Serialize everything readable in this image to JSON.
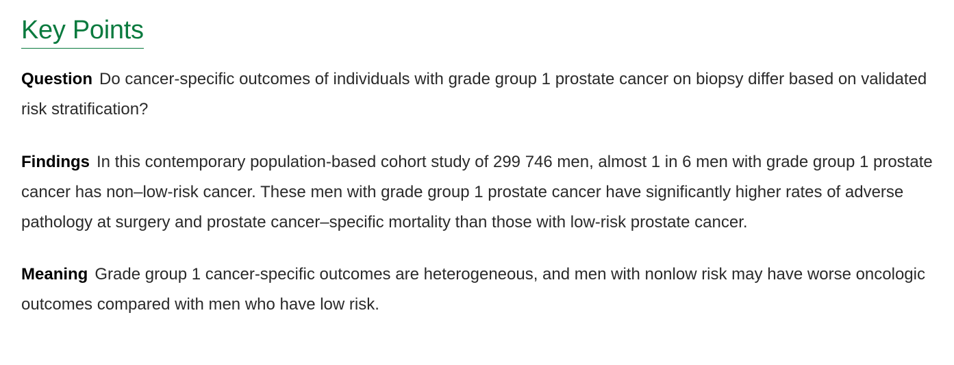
{
  "key_points": {
    "title": "Key Points",
    "question": {
      "label": "Question",
      "text": "Do cancer-specific outcomes of individuals with grade group 1 prostate cancer on biopsy differ based on validated risk stratification?"
    },
    "findings": {
      "label": "Findings",
      "text": "In this contemporary population-based cohort study of 299 746 men, almost 1 in 6 men with grade group 1 prostate cancer has non–low-risk cancer. These men with grade group 1 prostate cancer have significantly higher rates of adverse pathology at surgery and prostate cancer–specific mortality than those with low-risk prostate cancer."
    },
    "meaning": {
      "label": "Meaning",
      "text": "Grade group 1 cancer-specific outcomes are heterogeneous, and men with nonlow risk may have worse oncologic outcomes compared with men who have low risk."
    },
    "colors": {
      "title": "#0a7a3e",
      "label": "#000000",
      "body": "#2a2a2a"
    }
  }
}
